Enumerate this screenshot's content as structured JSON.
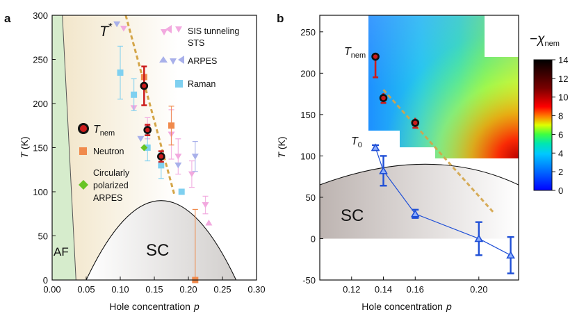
{
  "panels": {
    "a": {
      "letter": "a",
      "xlabel": "Hole concentration",
      "xlabel_var": "p",
      "ylabel_var": "T",
      "ylabel_unit": " (K)",
      "tstar_label": "T",
      "tstar_sup": "*",
      "region_labels": {
        "af": "AF",
        "sc": "SC"
      },
      "legend": {
        "sis": "SIS tunneling",
        "sts": "STS",
        "arpes": "ARPES",
        "raman": "Raman",
        "tnem_main": "T",
        "tnem_sub": "nem",
        "neutron": "Neutron",
        "circ_line1": "Circularly",
        "circ_line2": "polarized",
        "circ_line3": "ARPES"
      }
    },
    "b": {
      "letter": "b",
      "xlabel": "Hole concentration",
      "xlabel_var": "p",
      "ylabel_var": "T",
      "ylabel_unit": " (K)",
      "tnem_main": "T",
      "tnem_sub": "nem",
      "t0_main": "T",
      "t0_sub": "0",
      "sc_label": "SC",
      "colorbar": {
        "label_sign": "−",
        "label_main": "χ",
        "label_sub": "nem",
        "ticks": [
          "0",
          "2",
          "4",
          "6",
          "8",
          "10",
          "12",
          "14"
        ],
        "range": [
          0,
          14
        ]
      }
    }
  },
  "colors": {
    "tnem_red": "#cc1c1c",
    "tstar_dash": "#d4a548",
    "af_green": "#d6eccc",
    "pseudogap": "#f3e9d4",
    "sc_gray": "#d9d6d4",
    "raman": "#7fd0f0",
    "neutron": "#f08a4c",
    "circ": "#66c424",
    "sis_pink": "#f2a9df",
    "arpes_lav": "#a8b0ea",
    "t0_blue": "#1f4fd6"
  },
  "chart_data": [
    {
      "id": "a",
      "type": "scatter",
      "title": "",
      "xlabel": "Hole concentration p",
      "ylabel": "T (K)",
      "xlim": [
        0,
        0.3
      ],
      "ylim": [
        0,
        300
      ],
      "xticks": [
        "0.00",
        "0.05",
        "0.10",
        "0.15",
        "0.20",
        "0.25",
        "0.30"
      ],
      "yticks": [
        "0",
        "50",
        "100",
        "150",
        "200",
        "250",
        "300"
      ],
      "af_boundary": {
        "p": [
          0.0,
          0.015,
          0.035
        ],
        "T": [
          300,
          300,
          0
        ]
      },
      "sc_dome": {
        "p_min": 0.05,
        "p_max": 0.27,
        "p_peak": 0.16,
        "T_peak": 90
      },
      "tstar_line": {
        "p": [
          0.108,
          0.18
        ],
        "T": [
          300,
          95
        ]
      },
      "series": [
        {
          "name": "T_nem",
          "marker": "circle",
          "points": [
            {
              "p": 0.135,
              "T": 220,
              "err": 22
            },
            {
              "p": 0.14,
              "T": 170,
              "err": 6
            },
            {
              "p": 0.16,
              "T": 140,
              "err": 6
            }
          ]
        },
        {
          "name": "Raman",
          "marker": "square",
          "points": [
            {
              "p": 0.1,
              "T": 235,
              "err": 30
            },
            {
              "p": 0.12,
              "T": 210,
              "err": 18
            },
            {
              "p": 0.14,
              "T": 150,
              "err": 15
            },
            {
              "p": 0.16,
              "T": 130,
              "err": 15
            },
            {
              "p": 0.19,
              "T": 100,
              "err": 0
            }
          ]
        },
        {
          "name": "Neutron",
          "marker": "square",
          "points": [
            {
              "p": 0.135,
              "T": 230,
              "err": 0
            },
            {
              "p": 0.175,
              "T": 175,
              "err": 22
            },
            {
              "p": 0.21,
              "T": 0,
              "err": 80
            }
          ]
        },
        {
          "name": "Circularly polarized ARPES",
          "marker": "diamond",
          "points": [
            {
              "p": 0.135,
              "T": 150,
              "err": 0
            }
          ]
        },
        {
          "name": "SIS tunneling / STS",
          "marker": "triangle-down",
          "points": [
            {
              "p": 0.105,
              "T": 285,
              "err": 0
            },
            {
              "p": 0.12,
              "T": 195,
              "err": 0
            },
            {
              "p": 0.14,
              "T": 172,
              "err": 12
            },
            {
              "p": 0.175,
              "T": 165,
              "err": 28
            },
            {
              "p": 0.185,
              "T": 140,
              "err": 20
            },
            {
              "p": 0.205,
              "T": 120,
              "err": 15
            },
            {
              "p": 0.225,
              "T": 85,
              "err": 10
            }
          ]
        },
        {
          "name": "SIS tunneling / STS (triangle-up)",
          "marker": "triangle-up",
          "points": [
            {
              "p": 0.23,
              "T": 65,
              "err": 0
            }
          ]
        },
        {
          "name": "ARPES",
          "marker": "triangle-down",
          "points": [
            {
              "p": 0.095,
              "T": 290,
              "err": 0
            },
            {
              "p": 0.13,
              "T": 160,
              "err": 0
            },
            {
              "p": 0.185,
              "T": 130,
              "err": 0
            },
            {
              "p": 0.21,
              "T": 140,
              "err": 17
            }
          ]
        }
      ]
    },
    {
      "id": "b",
      "type": "heatmap",
      "title": "",
      "xlabel": "Hole concentration p",
      "ylabel": "T (K)",
      "xlim": [
        0.1,
        0.225
      ],
      "ylim": [
        -50,
        270
      ],
      "xticks": [
        "0.12",
        "0.14",
        "0.16",
        "0.20"
      ],
      "xtick_values": [
        0.12,
        0.14,
        0.16,
        0.2
      ],
      "yticks": [
        "-50",
        "0",
        "50",
        "100",
        "150",
        "200",
        "250"
      ],
      "heatmap": {
        "quantity": "-chi_nem",
        "range": [
          0,
          14
        ]
      },
      "sc_dome": {
        "p_left": 0.1,
        "T_left": 65,
        "p_peak": 0.17,
        "T_peak": 90,
        "p_right": 0.225,
        "T_right": 65
      },
      "tstar_line": {
        "p": [
          0.14,
          0.21
        ],
        "T": [
          180,
          30
        ]
      },
      "series": [
        {
          "name": "T_nem",
          "marker": "circle",
          "points": [
            {
              "p": 0.135,
              "T": 220,
              "err_lo": 25,
              "err_hi": 0
            },
            {
              "p": 0.14,
              "T": 170,
              "err": 6
            },
            {
              "p": 0.16,
              "T": 140,
              "err": 6
            }
          ]
        },
        {
          "name": "T_0",
          "marker": "triangle-up",
          "points": [
            {
              "p": 0.135,
              "T": 110,
              "err": 3
            },
            {
              "p": 0.14,
              "T": 82,
              "err": 18
            },
            {
              "p": 0.16,
              "T": 30,
              "err": 5
            },
            {
              "p": 0.2,
              "T": 0,
              "err": 20
            },
            {
              "p": 0.22,
              "T": -20,
              "err": 22
            }
          ]
        }
      ]
    }
  ]
}
